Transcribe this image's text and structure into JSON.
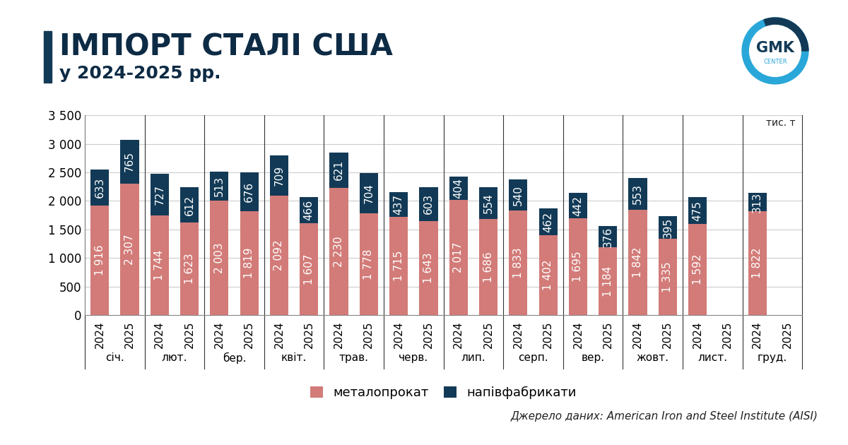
{
  "chart_data": {
    "type": "bar",
    "title": "ІМПОРТ СТАЛІ США",
    "subtitle": "у 2024-2025 рр.",
    "unit_label": "тис. т",
    "source": "Джерело даних: American Iron and Steel Institute (AISI)",
    "logo": {
      "text": "GMK",
      "subtext": "CENTER"
    },
    "categories": [
      "2024",
      "2025",
      "2024",
      "2025",
      "2024",
      "2025",
      "2024",
      "2025",
      "2024",
      "2025",
      "2024",
      "2025",
      "2024",
      "2025",
      "2024",
      "2025",
      "2024",
      "2025",
      "2024",
      "2025",
      "2024",
      "2025",
      "2024",
      "2025"
    ],
    "groups": [
      "січ.",
      "лют.",
      "бер.",
      "квіт.",
      "трав.",
      "черв.",
      "лип.",
      "серп.",
      "вер.",
      "жовт.",
      "лист.",
      "груд."
    ],
    "stacked": true,
    "data_labels": true,
    "grid": true,
    "legend": "bottom",
    "ylim": [
      0,
      3500
    ],
    "yticks": [
      0,
      500,
      {
        "value": 1000,
        "label": "1 000"
      },
      {
        "value": 1500,
        "label": "1 500"
      },
      {
        "value": 2000,
        "label": "2 000"
      },
      {
        "value": 2500,
        "label": "2 500"
      },
      {
        "value": 3000,
        "label": "3 000"
      },
      {
        "value": 3500,
        "label": "3 500"
      }
    ],
    "series": [
      {
        "name": "металопрокат",
        "color": "#d27b78",
        "values": [
          1916,
          2307,
          1744,
          1623,
          2003,
          1819,
          2092,
          1607,
          2230,
          1778,
          1715,
          1643,
          2017,
          1686,
          1833,
          1402,
          1695,
          1184,
          1842,
          1335,
          1592,
          null,
          1822,
          null
        ],
        "value_labels": [
          "1 916",
          "2 307",
          "1 744",
          "1 623",
          "2 003",
          "1 819",
          "2 092",
          "1 607",
          "2 230",
          "1 778",
          "1 715",
          "1 643",
          "2 017",
          "1 686",
          "1 833",
          "1 402",
          "1 695",
          "1 184",
          "1 842",
          "1 335",
          "1 592",
          null,
          "1 822",
          null
        ]
      },
      {
        "name": "напівфабрикати",
        "color": "#123a56",
        "values": [
          633,
          765,
          727,
          612,
          513,
          676,
          709,
          466,
          621,
          704,
          437,
          603,
          404,
          554,
          540,
          462,
          442,
          376,
          553,
          395,
          475,
          null,
          313,
          null
        ]
      }
    ]
  }
}
